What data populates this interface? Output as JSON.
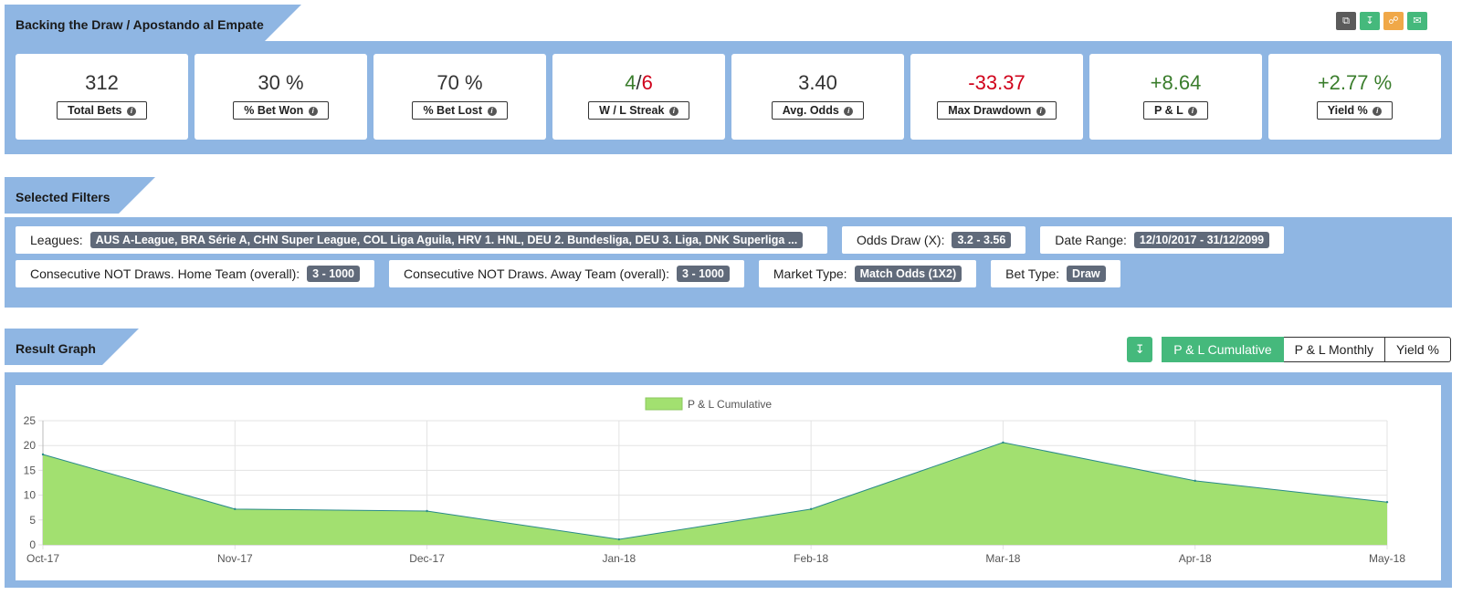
{
  "header": {
    "title": "Backing the Draw / Apostando al Empate",
    "icons": [
      "copy-icon",
      "download-icon",
      "share-icon",
      "email-icon"
    ]
  },
  "stats": [
    {
      "value": "312",
      "label": "Total Bets",
      "tone": "neutral"
    },
    {
      "value": "30 %",
      "label": "% Bet Won",
      "tone": "neutral"
    },
    {
      "value": "70 %",
      "label": "% Bet Lost",
      "tone": "neutral"
    },
    {
      "value_win": "4",
      "value_sep": "/",
      "value_loss": "6",
      "label": "W / L Streak",
      "tone": "split"
    },
    {
      "value": "3.40",
      "label": "Avg. Odds",
      "tone": "neutral"
    },
    {
      "value": "-33.37",
      "label": "Max Drawdown",
      "tone": "neg"
    },
    {
      "value": "+8.64",
      "label": "P & L",
      "tone": "pos"
    },
    {
      "value": "+2.77 %",
      "label": "Yield %",
      "tone": "pos"
    }
  ],
  "filters_section": {
    "title": "Selected Filters",
    "rows": [
      [
        {
          "label": "Leagues:",
          "value": "AUS A-League, BRA Série A, CHN Super League, COL Liga Aguila, HRV 1. HNL, DEU 2. Bundesliga, DEU 3. Liga, DNK Superliga ..."
        },
        {
          "label": "Odds Draw (X):",
          "value": "3.2 - 3.56"
        },
        {
          "label": "Date Range:",
          "value": "12/10/2017 - 31/12/2099"
        }
      ],
      [
        {
          "label": "Consecutive NOT Draws. Home Team (overall):",
          "value": "3 - 1000"
        },
        {
          "label": "Consecutive NOT Draws. Away Team (overall):",
          "value": "3 - 1000"
        },
        {
          "label": "Market Type:",
          "value": "Match Odds (1X2)"
        },
        {
          "label": "Bet Type:",
          "value": "Draw"
        }
      ]
    ]
  },
  "graph_section": {
    "title": "Result Graph",
    "buttons": [
      "P & L Cumulative",
      "P & L Monthly",
      "Yield %"
    ],
    "active": "P & L Cumulative"
  },
  "chart_data": {
    "type": "area",
    "categories": [
      "Oct-17",
      "Nov-17",
      "Dec-17",
      "Jan-18",
      "Feb-18",
      "Mar-18",
      "Apr-18",
      "May-18"
    ],
    "series": [
      {
        "name": "P & L Cumulative",
        "values": [
          18.2,
          7.2,
          6.8,
          1.1,
          7.2,
          20.6,
          12.9,
          8.6
        ]
      }
    ],
    "ylim": [
      0,
      25
    ],
    "yticks": [
      0,
      5,
      10,
      15,
      20,
      25
    ],
    "grid": true,
    "legend": "top-center",
    "colors": {
      "fill": "#a2e070",
      "line": "#2a8a8a"
    }
  }
}
